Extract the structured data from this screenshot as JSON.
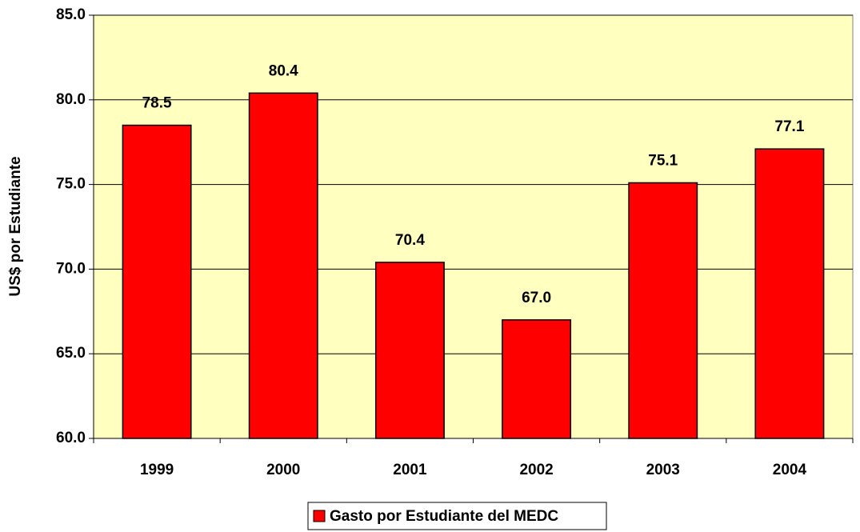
{
  "chart_data": {
    "type": "bar",
    "y_label": "US$ por Estudiante",
    "categories": [
      "1999",
      "2000",
      "2001",
      "2002",
      "2003",
      "2004"
    ],
    "series": [
      {
        "name": "Gasto por Estudiante del MEDC",
        "color": "#ff0000",
        "values": [
          78.5,
          80.4,
          70.4,
          67.0,
          75.1,
          77.1
        ],
        "value_labels": [
          "78.5",
          "80.4",
          "70.4",
          "67.0",
          "75.1",
          "77.1"
        ]
      }
    ],
    "ylim": [
      60,
      85
    ],
    "yticks": [
      {
        "value": 60,
        "label": "60.0"
      },
      {
        "value": 65,
        "label": "65.0"
      },
      {
        "value": 70,
        "label": "70.0"
      },
      {
        "value": 75,
        "label": "75.0"
      },
      {
        "value": 80,
        "label": "80.0"
      },
      {
        "value": 85,
        "label": "85.0"
      }
    ],
    "grid": true,
    "plot_background": "#ffffc0",
    "legend": "bottom"
  }
}
